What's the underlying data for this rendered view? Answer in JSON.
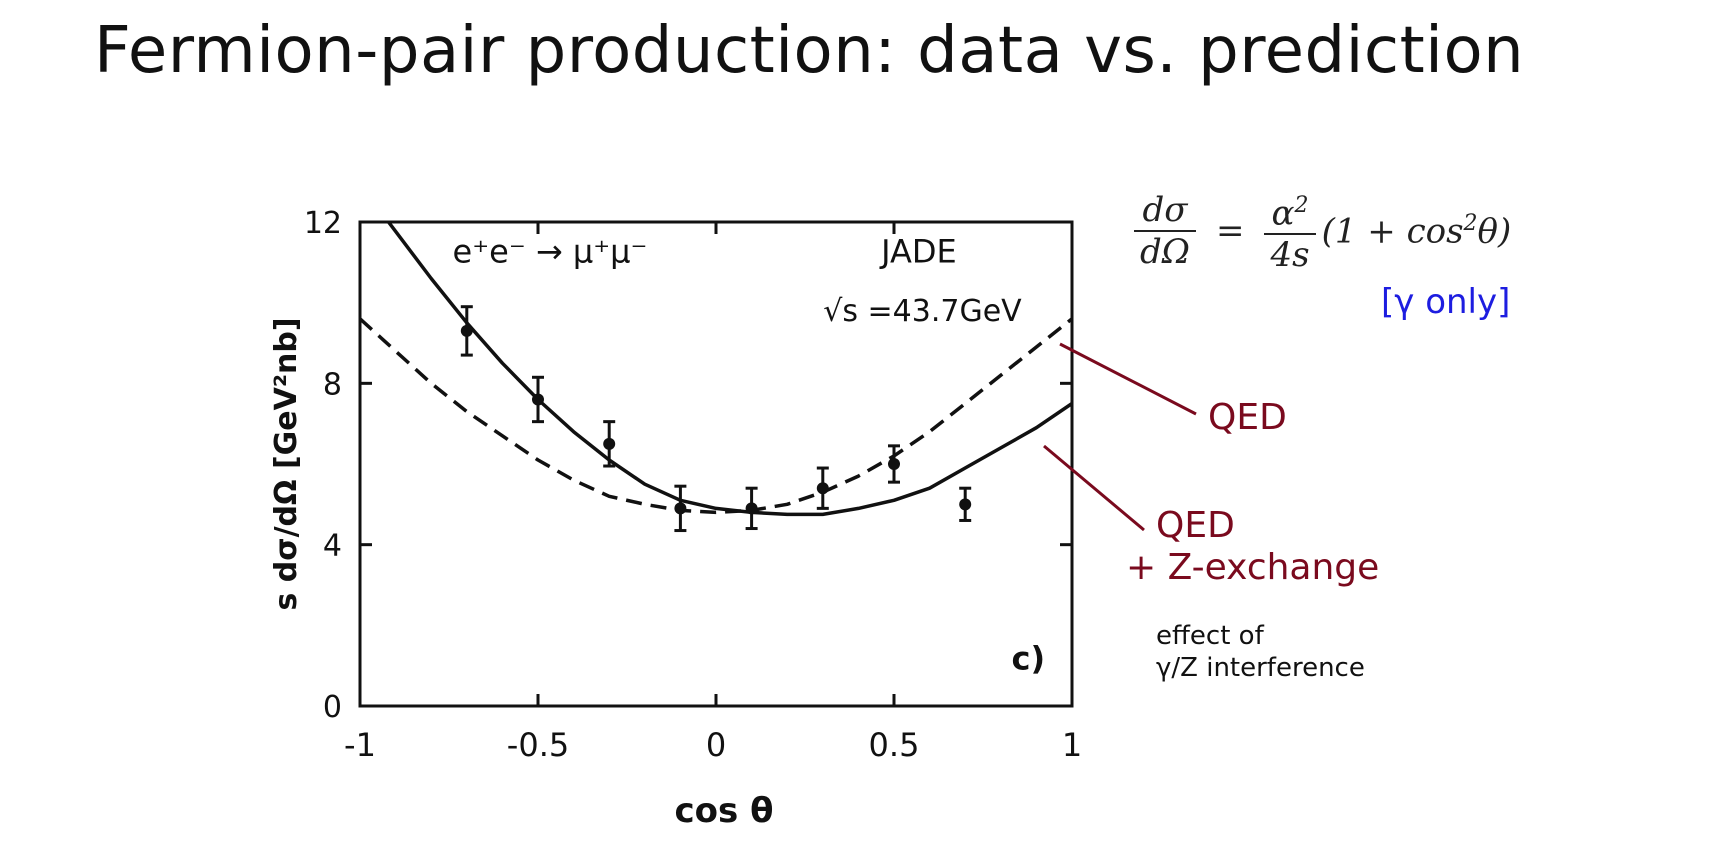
{
  "slide": {
    "title": "Fermion-pair production: data vs. prediction"
  },
  "formula": {
    "lhs_num": "dσ",
    "lhs_den": "dΩ",
    "eq": "=",
    "rhs_num": "α",
    "rhs_num_sup": "2",
    "rhs_den": "4s",
    "rhs_rest_a": "(1 + cos",
    "rhs_rest_sup": "2",
    "rhs_rest_b": "θ)",
    "note": "[γ only]"
  },
  "annotations": {
    "qed": "QED",
    "qed_z_line1": "QED",
    "qed_z_line2": "+ Z-exchange",
    "effect_line1": "effect of",
    "effect_line2": "γ/Z interference"
  },
  "colors": {
    "annotation": "#7a0a1e",
    "note": "#1d1de0",
    "ink": "#111111"
  },
  "chart_data": {
    "type": "scatter",
    "xlabel": "cos θ",
    "ylabel": "s dσ/dΩ [GeV²nb]",
    "xlim": [
      -1,
      1
    ],
    "ylim": [
      0,
      12
    ],
    "x_ticks": [
      {
        "value": -1,
        "label": "-1"
      },
      {
        "value": -0.5,
        "label": "-0.5"
      },
      {
        "value": 0,
        "label": "0"
      },
      {
        "value": 0.5,
        "label": "0.5"
      },
      {
        "value": 1,
        "label": "1"
      }
    ],
    "y_ticks": [
      {
        "value": 0,
        "label": "0"
      },
      {
        "value": 4,
        "label": "4"
      },
      {
        "value": 8,
        "label": "8"
      },
      {
        "value": 12,
        "label": "12"
      }
    ],
    "process_label": "e⁺e⁻ → μ⁺μ⁻",
    "experiment_label": "JADE",
    "energy_label": "√s =43.7GeV",
    "panel_label": "c)",
    "points": [
      {
        "x": -0.7,
        "y": 9.3,
        "err": 0.6
      },
      {
        "x": -0.5,
        "y": 7.6,
        "err": 0.55
      },
      {
        "x": -0.3,
        "y": 6.5,
        "err": 0.55
      },
      {
        "x": -0.1,
        "y": 4.9,
        "err": 0.55
      },
      {
        "x": 0.1,
        "y": 4.9,
        "err": 0.5
      },
      {
        "x": 0.3,
        "y": 5.4,
        "err": 0.5
      },
      {
        "x": 0.5,
        "y": 6.0,
        "err": 0.45
      },
      {
        "x": 0.7,
        "y": 5.0,
        "err": 0.4
      }
    ],
    "series": [
      {
        "style": "dashed",
        "x": [
          -1,
          -0.9,
          -0.8,
          -0.7,
          -0.6,
          -0.5,
          -0.4,
          -0.3,
          -0.2,
          -0.1,
          0,
          0.1,
          0.2,
          0.3,
          0.4,
          0.5,
          0.6,
          0.7,
          0.8,
          0.9,
          1
        ],
        "y": [
          9.6,
          8.8,
          8.0,
          7.3,
          6.7,
          6.1,
          5.6,
          5.2,
          5.0,
          4.85,
          4.8,
          4.85,
          5.0,
          5.3,
          5.7,
          6.2,
          6.8,
          7.5,
          8.2,
          8.9,
          9.6
        ]
      },
      {
        "style": "solid",
        "x": [
          -0.92,
          -0.8,
          -0.7,
          -0.6,
          -0.5,
          -0.4,
          -0.3,
          -0.2,
          -0.1,
          0,
          0.1,
          0.2,
          0.3,
          0.4,
          0.5,
          0.6,
          0.7,
          0.8,
          0.9,
          1
        ],
        "y": [
          12.0,
          10.6,
          9.5,
          8.5,
          7.6,
          6.8,
          6.1,
          5.5,
          5.1,
          4.9,
          4.8,
          4.75,
          4.75,
          4.9,
          5.1,
          5.4,
          5.9,
          6.4,
          6.9,
          7.5
        ]
      }
    ]
  }
}
